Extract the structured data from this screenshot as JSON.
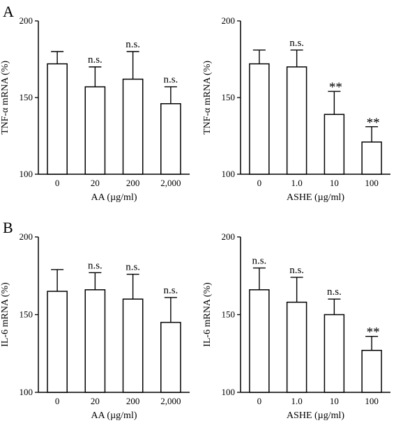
{
  "panels": [
    {
      "letter": "A"
    },
    {
      "letter": "B"
    }
  ],
  "chart_data": [
    {
      "type": "bar",
      "panel": "A",
      "xlabel": "AA (µg/ml)",
      "ylabel": "TNF-α  mRNA (%)",
      "ylim": [
        100,
        200
      ],
      "yticks": [
        "100",
        "150",
        "200"
      ],
      "categories": [
        "0",
        "20",
        "200",
        "2,000"
      ],
      "values": [
        172,
        157,
        162,
        146
      ],
      "errors": [
        8,
        13,
        18,
        11
      ],
      "annotations": [
        "",
        "n.s.",
        "n.s.",
        "n.s."
      ]
    },
    {
      "type": "bar",
      "panel": "A",
      "xlabel": "ASHE (µg/ml)",
      "ylabel": "TNF-α  mRNA (%)",
      "ylim": [
        100,
        200
      ],
      "yticks": [
        "100",
        "150",
        "200"
      ],
      "categories": [
        "0",
        "1.0",
        "10",
        "100"
      ],
      "values": [
        172,
        170,
        139,
        121
      ],
      "errors": [
        9,
        11,
        15,
        10
      ],
      "annotations": [
        "",
        "n.s.",
        "**",
        "**"
      ]
    },
    {
      "type": "bar",
      "panel": "B",
      "xlabel": "AA (µg/ml)",
      "ylabel": "IL-6 mRNA (%)",
      "ylim": [
        100,
        200
      ],
      "yticks": [
        "100",
        "150",
        "200"
      ],
      "categories": [
        "0",
        "20",
        "200",
        "2,000"
      ],
      "values": [
        165,
        166,
        160,
        145
      ],
      "errors": [
        14,
        11,
        16,
        16
      ],
      "annotations": [
        "",
        "n.s.",
        "n.s.",
        "n.s."
      ]
    },
    {
      "type": "bar",
      "panel": "B",
      "xlabel": "ASHE (µg/ml)",
      "ylabel": "IL-6 mRNA (%)",
      "ylim": [
        100,
        200
      ],
      "yticks": [
        "100",
        "150",
        "200"
      ],
      "categories": [
        "0",
        "1.0",
        "10",
        "100"
      ],
      "values": [
        166,
        158,
        150,
        127
      ],
      "errors": [
        14,
        16,
        10,
        9
      ],
      "annotations": [
        "n.s.",
        "n.s.",
        "n.s.",
        "**"
      ]
    }
  ]
}
